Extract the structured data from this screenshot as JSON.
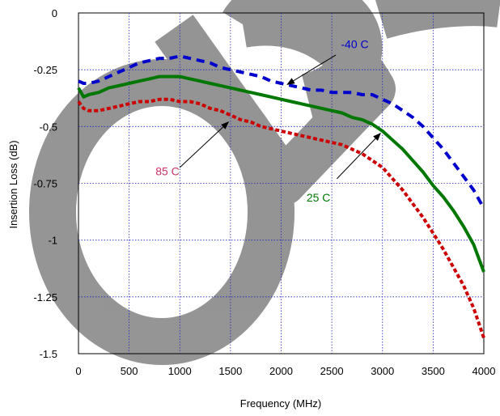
{
  "chart_data": {
    "type": "line",
    "title": "",
    "xlabel": "Frequency (MHz)",
    "ylabel": "Insertion Loss (dB)",
    "xlim": [
      0,
      4000
    ],
    "ylim": [
      -1.5,
      0
    ],
    "x_ticks": [
      "0",
      "500",
      "1000",
      "1500",
      "2000",
      "2500",
      "3000",
      "3500",
      "4000"
    ],
    "y_ticks": [
      "0",
      "-0.25",
      "-0.5",
      "-0.75",
      "-1",
      "-1.25",
      "-1.5"
    ],
    "grid": true,
    "series": [
      {
        "name": "-40 C",
        "color": "#0000cc",
        "style": "dashed",
        "x": [
          0,
          50,
          100,
          200,
          300,
          400,
          500,
          600,
          700,
          800,
          900,
          1000,
          1100,
          1200,
          1300,
          1400,
          1500,
          1600,
          1700,
          1800,
          1900,
          2000,
          2100,
          2200,
          2300,
          2400,
          2500,
          2600,
          2700,
          2800,
          2900,
          3000,
          3100,
          3200,
          3300,
          3400,
          3500,
          3600,
          3700,
          3800,
          3900,
          4000
        ],
        "y": [
          -0.3,
          -0.31,
          -0.31,
          -0.3,
          -0.28,
          -0.26,
          -0.24,
          -0.22,
          -0.21,
          -0.2,
          -0.2,
          -0.19,
          -0.2,
          -0.21,
          -0.22,
          -0.24,
          -0.25,
          -0.26,
          -0.27,
          -0.28,
          -0.3,
          -0.31,
          -0.32,
          -0.33,
          -0.34,
          -0.34,
          -0.35,
          -0.35,
          -0.35,
          -0.36,
          -0.36,
          -0.38,
          -0.4,
          -0.43,
          -0.46,
          -0.5,
          -0.55,
          -0.6,
          -0.66,
          -0.72,
          -0.78,
          -0.86
        ]
      },
      {
        "name": "25 C",
        "color": "#007700",
        "style": "solid",
        "x": [
          0,
          50,
          100,
          200,
          300,
          400,
          500,
          600,
          700,
          800,
          900,
          1000,
          1100,
          1200,
          1300,
          1400,
          1500,
          1600,
          1700,
          1800,
          1900,
          2000,
          2100,
          2200,
          2300,
          2400,
          2500,
          2600,
          2700,
          2800,
          2900,
          3000,
          3100,
          3200,
          3300,
          3400,
          3500,
          3600,
          3700,
          3800,
          3900,
          4000
        ],
        "y": [
          -0.33,
          -0.37,
          -0.36,
          -0.35,
          -0.33,
          -0.32,
          -0.31,
          -0.3,
          -0.29,
          -0.28,
          -0.28,
          -0.28,
          -0.29,
          -0.3,
          -0.31,
          -0.32,
          -0.33,
          -0.34,
          -0.35,
          -0.36,
          -0.37,
          -0.38,
          -0.39,
          -0.4,
          -0.41,
          -0.42,
          -0.43,
          -0.44,
          -0.46,
          -0.47,
          -0.49,
          -0.52,
          -0.56,
          -0.6,
          -0.65,
          -0.7,
          -0.76,
          -0.81,
          -0.87,
          -0.94,
          -1.02,
          -1.14
        ]
      },
      {
        "name": "85 C",
        "color": "#cc0000",
        "style": "dotted",
        "x": [
          0,
          50,
          100,
          200,
          300,
          400,
          500,
          600,
          700,
          800,
          900,
          1000,
          1100,
          1200,
          1300,
          1400,
          1500,
          1600,
          1700,
          1800,
          1900,
          2000,
          2100,
          2200,
          2300,
          2400,
          2500,
          2600,
          2700,
          2800,
          2900,
          3000,
          3100,
          3200,
          3300,
          3400,
          3500,
          3600,
          3700,
          3800,
          3900,
          4000
        ],
        "y": [
          -0.39,
          -0.42,
          -0.43,
          -0.43,
          -0.42,
          -0.41,
          -0.4,
          -0.39,
          -0.39,
          -0.38,
          -0.38,
          -0.39,
          -0.39,
          -0.4,
          -0.42,
          -0.43,
          -0.45,
          -0.47,
          -0.48,
          -0.5,
          -0.51,
          -0.52,
          -0.53,
          -0.54,
          -0.55,
          -0.56,
          -0.57,
          -0.58,
          -0.6,
          -0.62,
          -0.65,
          -0.68,
          -0.73,
          -0.78,
          -0.84,
          -0.9,
          -0.97,
          -1.04,
          -1.12,
          -1.2,
          -1.3,
          -1.43
        ]
      }
    ],
    "annotations": [
      {
        "text": "-40 C",
        "color": "#0000cc",
        "text_x": 2590,
        "text_y": -0.155,
        "arrow_from": [
          2540,
          -0.185
        ],
        "arrow_to": [
          2060,
          -0.315
        ]
      },
      {
        "text": "25 C",
        "color": "#007700",
        "text_x": 2250,
        "text_y": -0.83,
        "arrow_from": [
          2550,
          -0.73
        ],
        "arrow_to": [
          2980,
          -0.53
        ]
      },
      {
        "text": "85 C",
        "color": "#cc3366",
        "text_x": 760,
        "text_y": -0.715,
        "arrow_from": [
          1000,
          -0.68
        ],
        "arrow_to": [
          1480,
          -0.48
        ]
      }
    ]
  }
}
